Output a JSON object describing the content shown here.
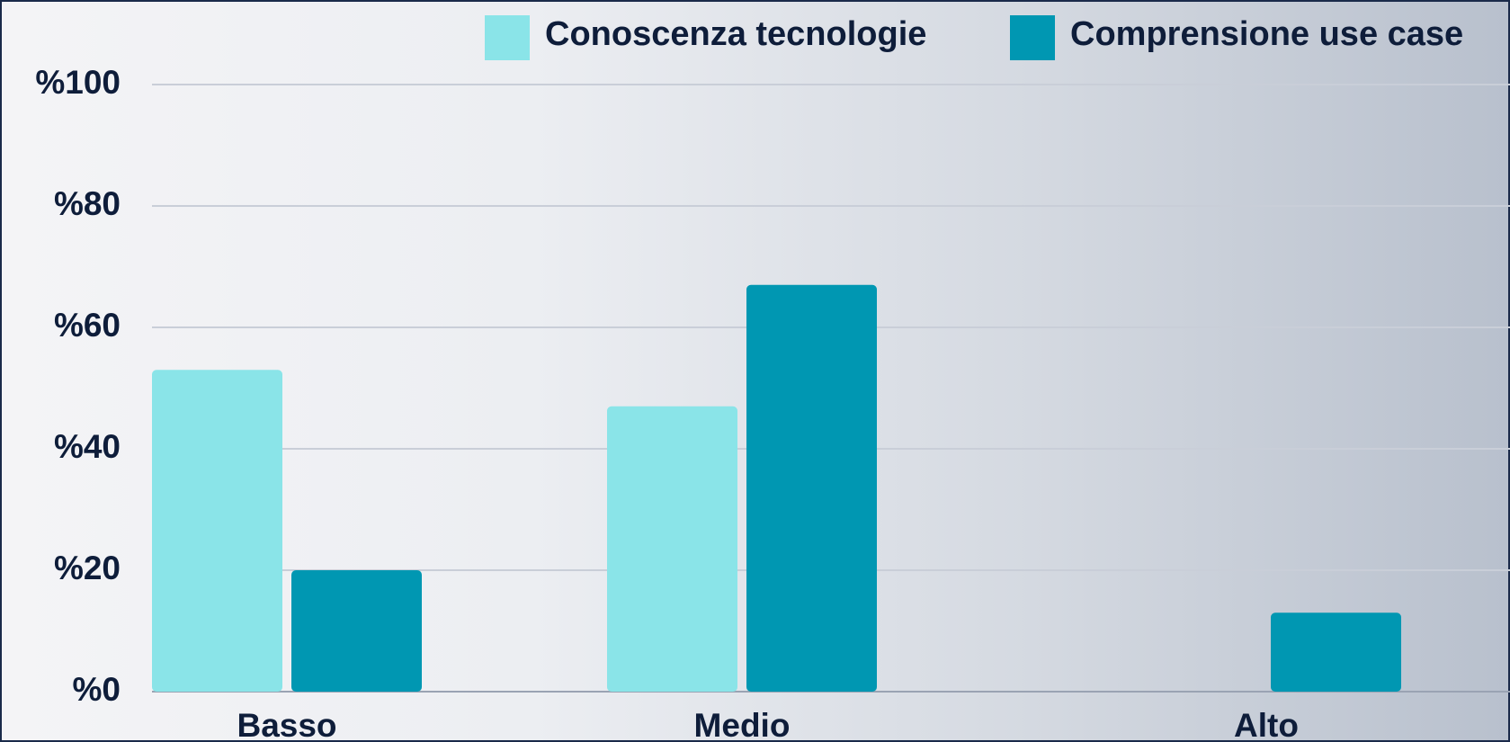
{
  "chart_data": {
    "type": "bar",
    "categories": [
      "Basso",
      "Medio",
      "Alto"
    ],
    "series": [
      {
        "name": "Conoscenza tecnologie",
        "color": "#8ae4e8",
        "values": [
          53,
          47,
          0
        ]
      },
      {
        "name": "Comprensione use case",
        "color": "#0097b2",
        "values": [
          20,
          67,
          13
        ]
      }
    ],
    "ylim": [
      0,
      100
    ],
    "yticks": [
      {
        "value": 0,
        "label": "%0"
      },
      {
        "value": 20,
        "label": "%20"
      },
      {
        "value": 40,
        "label": "%40"
      },
      {
        "value": 60,
        "label": "%60"
      },
      {
        "value": 80,
        "label": "%80"
      },
      {
        "value": 100,
        "label": "%100"
      }
    ],
    "grid": true
  }
}
